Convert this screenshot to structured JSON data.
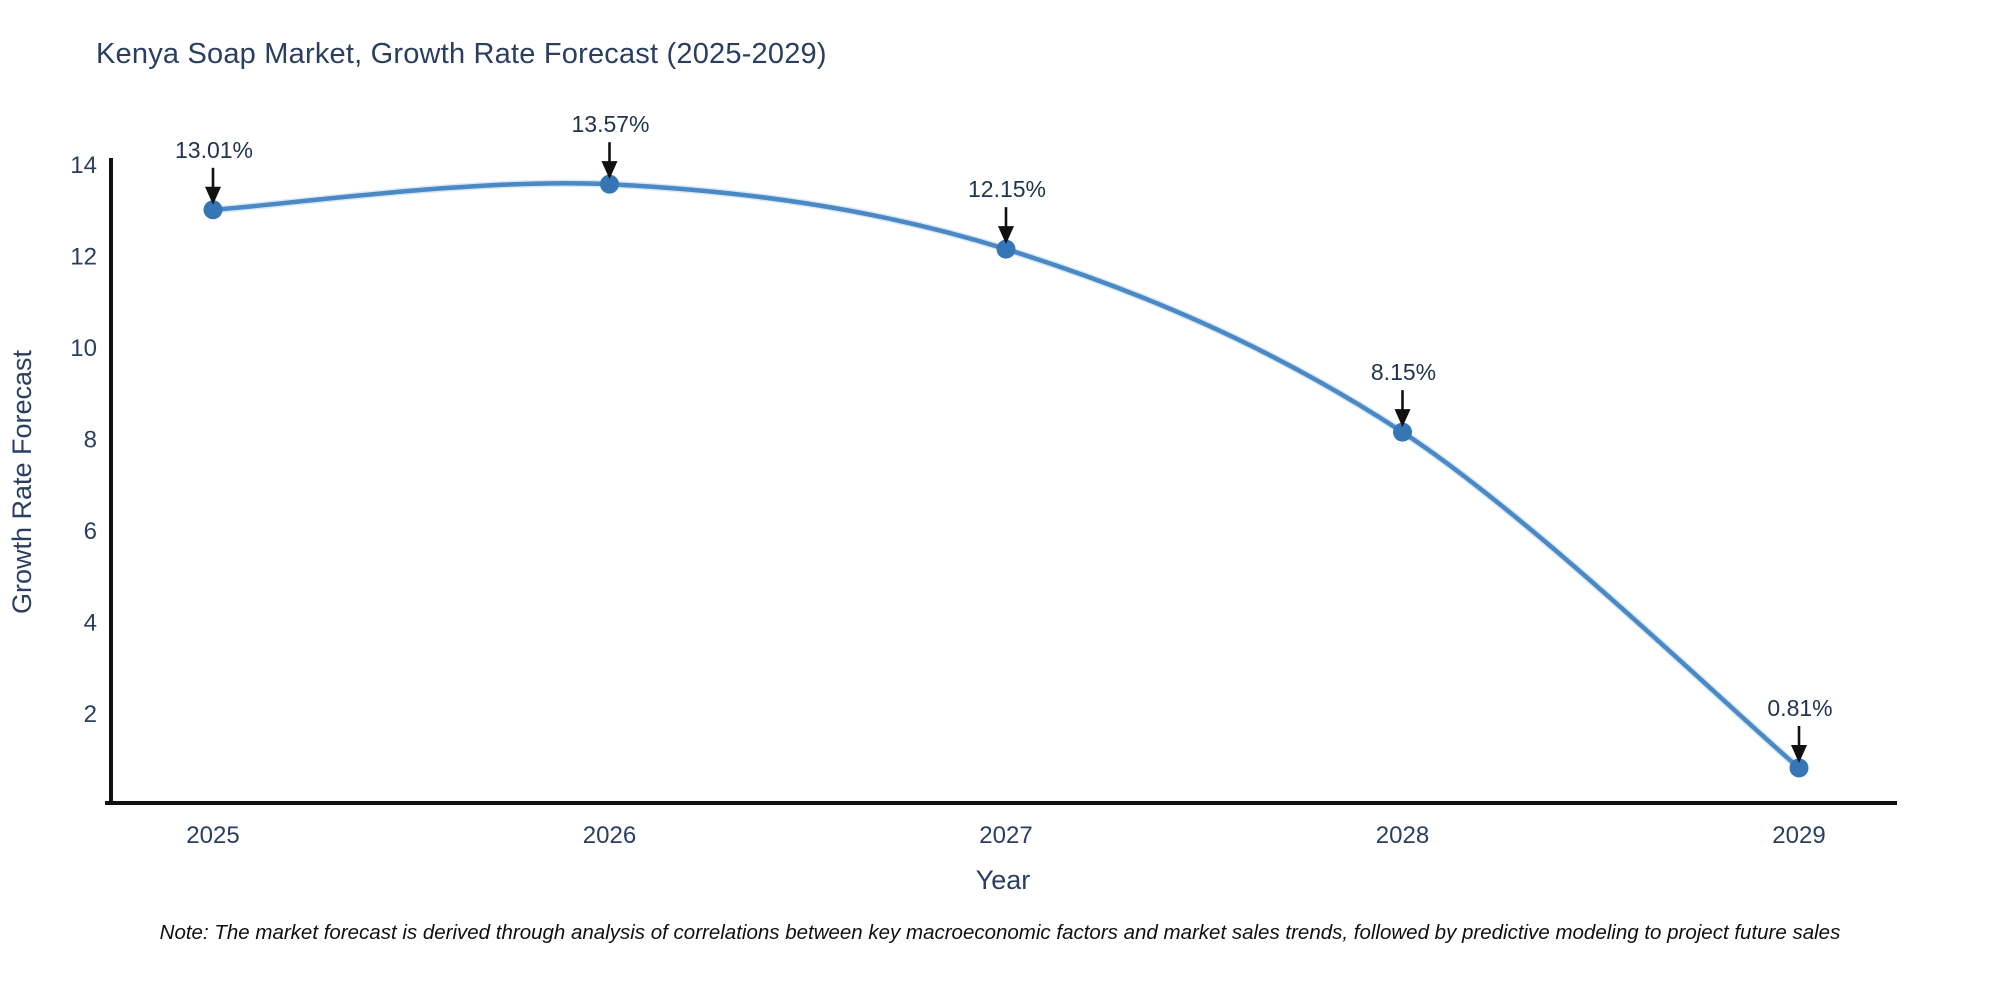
{
  "title": "Kenya Soap Market, Growth Rate Forecast (2025-2029)",
  "note": "Note: The market forecast is derived through analysis of correlations between key macroeconomic factors and market sales trends, followed by predictive modeling to project future sales",
  "chart_data": {
    "type": "line",
    "line_shape": "spline",
    "x": [
      2025,
      2026,
      2027,
      2028,
      2029
    ],
    "y": [
      13.01,
      13.57,
      12.15,
      8.15,
      0.81
    ],
    "point_labels": [
      "13.01%",
      "13.57%",
      "12.15%",
      "8.15%",
      "0.81%"
    ],
    "series_name": "Growth Rate Forecast",
    "xlabel": "Year",
    "ylabel": "Growth Rate Forecast",
    "yticks": [
      2,
      4,
      6,
      8,
      10,
      12,
      14
    ],
    "xticks": [
      2025,
      2026,
      2027,
      2028,
      2029
    ],
    "ylim": [
      0,
      14.2
    ],
    "grid": false,
    "legend_position": "none",
    "annotations_have_arrows": true,
    "colors": {
      "line": "#4a89c4",
      "line_halo": "#b9d6ee",
      "marker": "#3776b5",
      "axis": "#111111",
      "text": "#2a3f5f",
      "arrow": "#111111"
    }
  }
}
